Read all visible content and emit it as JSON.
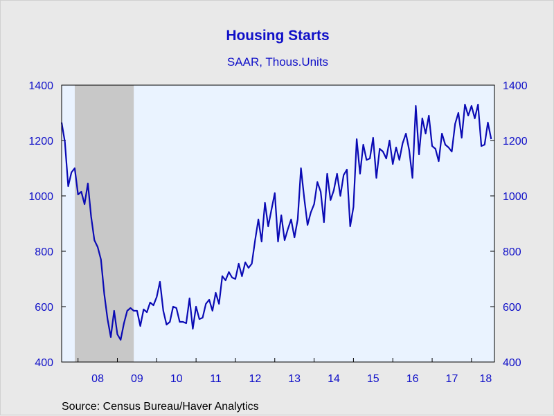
{
  "chart_data": {
    "type": "line",
    "title": "Housing Starts",
    "subtitle": "SAAR, Thous.Units",
    "source": "Source:  Census Bureau/Haver Analytics",
    "y_ticks": [
      "400",
      "600",
      "800",
      "1000",
      "1200",
      "1400"
    ],
    "ylim": [
      400,
      1400
    ],
    "x_ticks": [
      "08",
      "09",
      "10",
      "11",
      "12",
      "13",
      "14",
      "15",
      "16",
      "17",
      "18"
    ],
    "x_range": [
      "2007-08",
      "2018-08"
    ],
    "grid": false,
    "recession_shading": {
      "start": "2007-12",
      "end": "2009-06",
      "color": "#c8c8c8"
    },
    "plot_background": "#eaf3ff",
    "line_color": "#0a0ab4",
    "text_color": "#1010c8",
    "series": [
      {
        "start": "2007-08",
        "frequency": "monthly",
        "values": [
          1265,
          1195,
          1035,
          1085,
          1100,
          1005,
          1015,
          970,
          1045,
          925,
          840,
          815,
          770,
          645,
          555,
          490,
          585,
          500,
          480,
          540,
          585,
          595,
          585,
          585,
          530,
          590,
          580,
          615,
          605,
          635,
          690,
          585,
          535,
          545,
          600,
          595,
          545,
          545,
          540,
          630,
          520,
          600,
          555,
          560,
          610,
          625,
          585,
          650,
          610,
          710,
          695,
          725,
          705,
          700,
          755,
          710,
          760,
          740,
          755,
          840,
          915,
          835,
          975,
          890,
          950,
          1010,
          835,
          930,
          840,
          880,
          915,
          850,
          915,
          1100,
          990,
          895,
          940,
          970,
          1050,
          1015,
          905,
          1080,
          985,
          1020,
          1080,
          1000,
          1075,
          1095,
          890,
          960,
          1205,
          1080,
          1185,
          1130,
          1135,
          1210,
          1065,
          1170,
          1160,
          1135,
          1200,
          1115,
          1175,
          1130,
          1190,
          1225,
          1165,
          1065,
          1325,
          1150,
          1280,
          1225,
          1290,
          1180,
          1170,
          1125,
          1225,
          1185,
          1175,
          1160,
          1260,
          1300,
          1210,
          1330,
          1290,
          1325,
          1280,
          1330,
          1180,
          1185,
          1265,
          1205
        ]
      }
    ]
  }
}
